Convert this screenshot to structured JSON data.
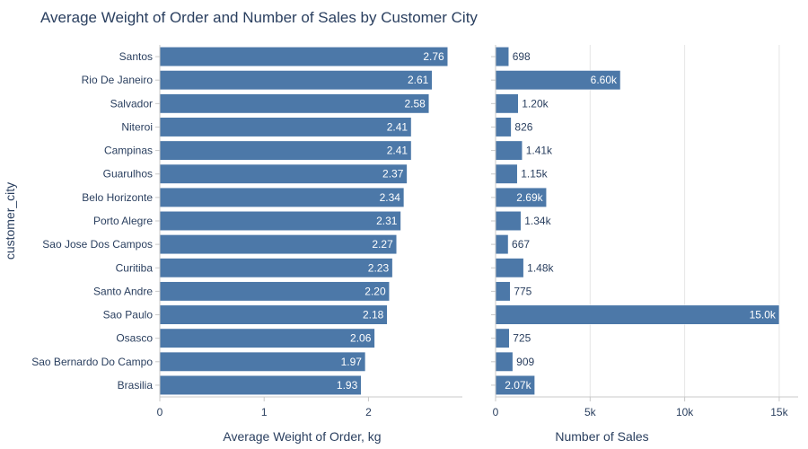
{
  "title": "Average Weight of Order and Number of Sales by Customer City",
  "colors": {
    "bar": "#4c78a8",
    "bar_edge": "#ffffff",
    "grid": "#e6e6e6",
    "axis": "#c8c8c8",
    "text": "#2a3f5f"
  },
  "chart_data": [
    {
      "type": "bar",
      "orientation": "horizontal",
      "ylabel": "customer_city",
      "xlabel": "Average Weight of Order, kg",
      "xlim": [
        0,
        2.9
      ],
      "xticks": [
        0,
        1,
        2
      ],
      "xtick_labels": [
        "0",
        "1",
        "2"
      ],
      "grid": false,
      "categories": [
        "Santos",
        "Rio De Janeiro",
        "Salvador",
        "Niteroi",
        "Campinas",
        "Guarulhos",
        "Belo Horizonte",
        "Porto Alegre",
        "Sao Jose Dos Campos",
        "Curitiba",
        "Santo Andre",
        "Sao Paulo",
        "Osasco",
        "Sao Bernardo Do Campo",
        "Brasilia"
      ],
      "values": [
        2.76,
        2.61,
        2.58,
        2.41,
        2.41,
        2.37,
        2.34,
        2.31,
        2.27,
        2.23,
        2.2,
        2.18,
        2.06,
        1.97,
        1.93
      ],
      "value_labels": [
        "2.76",
        "2.61",
        "2.58",
        "2.41",
        "2.41",
        "2.37",
        "2.34",
        "2.31",
        "2.27",
        "2.23",
        "2.20",
        "2.18",
        "2.06",
        "1.97",
        "1.93"
      ]
    },
    {
      "type": "bar",
      "orientation": "horizontal",
      "xlabel": "Number of Sales",
      "xlim": [
        0,
        16000
      ],
      "xticks": [
        0,
        5000,
        10000,
        15000
      ],
      "xtick_labels": [
        "0",
        "5k",
        "10k",
        "15k"
      ],
      "grid": true,
      "categories": [
        "Santos",
        "Rio De Janeiro",
        "Salvador",
        "Niteroi",
        "Campinas",
        "Guarulhos",
        "Belo Horizonte",
        "Porto Alegre",
        "Sao Jose Dos Campos",
        "Curitiba",
        "Santo Andre",
        "Sao Paulo",
        "Osasco",
        "Sao Bernardo Do Campo",
        "Brasilia"
      ],
      "values": [
        698,
        6600,
        1200,
        826,
        1410,
        1150,
        2690,
        1340,
        667,
        1480,
        775,
        15000,
        725,
        909,
        2070
      ],
      "value_labels": [
        "698",
        "6.60k",
        "1.20k",
        "826",
        "1.41k",
        "1.15k",
        "2.69k",
        "1.34k",
        "667",
        "1.48k",
        "775",
        "15.0k",
        "725",
        "909",
        "2.07k"
      ]
    }
  ]
}
